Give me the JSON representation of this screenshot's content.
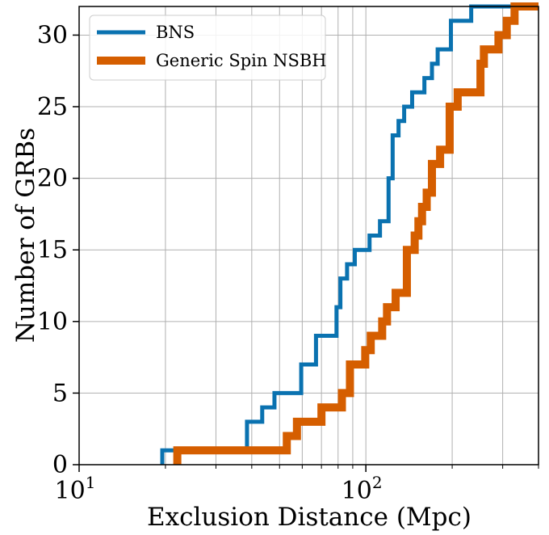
{
  "chart_data": {
    "type": "line",
    "chart_style": "cumulative-step",
    "xlabel": "Exclusion Distance (Mpc)",
    "ylabel": "Number of GRBs",
    "x_scale": "log",
    "xlim": [
      10,
      400
    ],
    "ylim": [
      0,
      32
    ],
    "x_tick_labels": [
      {
        "value": 10,
        "base": "10",
        "exp": "1"
      },
      {
        "value": 100,
        "base": "10",
        "exp": "2"
      }
    ],
    "y_ticks": [
      0,
      5,
      10,
      15,
      20,
      25,
      30
    ],
    "grid": true,
    "legend_position": "top-left",
    "series": [
      {
        "name": "BNS",
        "color": "#0a72b0",
        "x": [
          19.5,
          19.5,
          38.5,
          43.5,
          48,
          59.5,
          67,
          79,
          81.5,
          86,
          91.5,
          103,
          112,
          120,
          124,
          130,
          136,
          145,
          160,
          170,
          178,
          198,
          233,
          400
        ],
        "y": [
          0,
          1,
          3,
          4,
          5,
          7,
          9,
          11,
          13,
          14,
          15,
          16,
          17,
          20,
          23,
          24,
          25,
          26,
          27,
          28,
          29,
          31,
          32,
          32
        ]
      },
      {
        "name": "Generic Spin NSBH",
        "color": "#d55e00",
        "x": [
          22,
          22,
          53,
          57.5,
          70,
          82.5,
          88,
          99.5,
          104,
          114,
          118.5,
          127,
          139,
          148,
          152.5,
          157,
          163,
          170,
          181.5,
          196,
          209,
          251,
          258,
          290,
          310,
          330,
          400
        ],
        "y": [
          0,
          1,
          2,
          3,
          4,
          5,
          7,
          8,
          9,
          10,
          11,
          12,
          15,
          16,
          17,
          18,
          19,
          21,
          22,
          25,
          26,
          28,
          29,
          30,
          31,
          32,
          32
        ]
      }
    ]
  }
}
